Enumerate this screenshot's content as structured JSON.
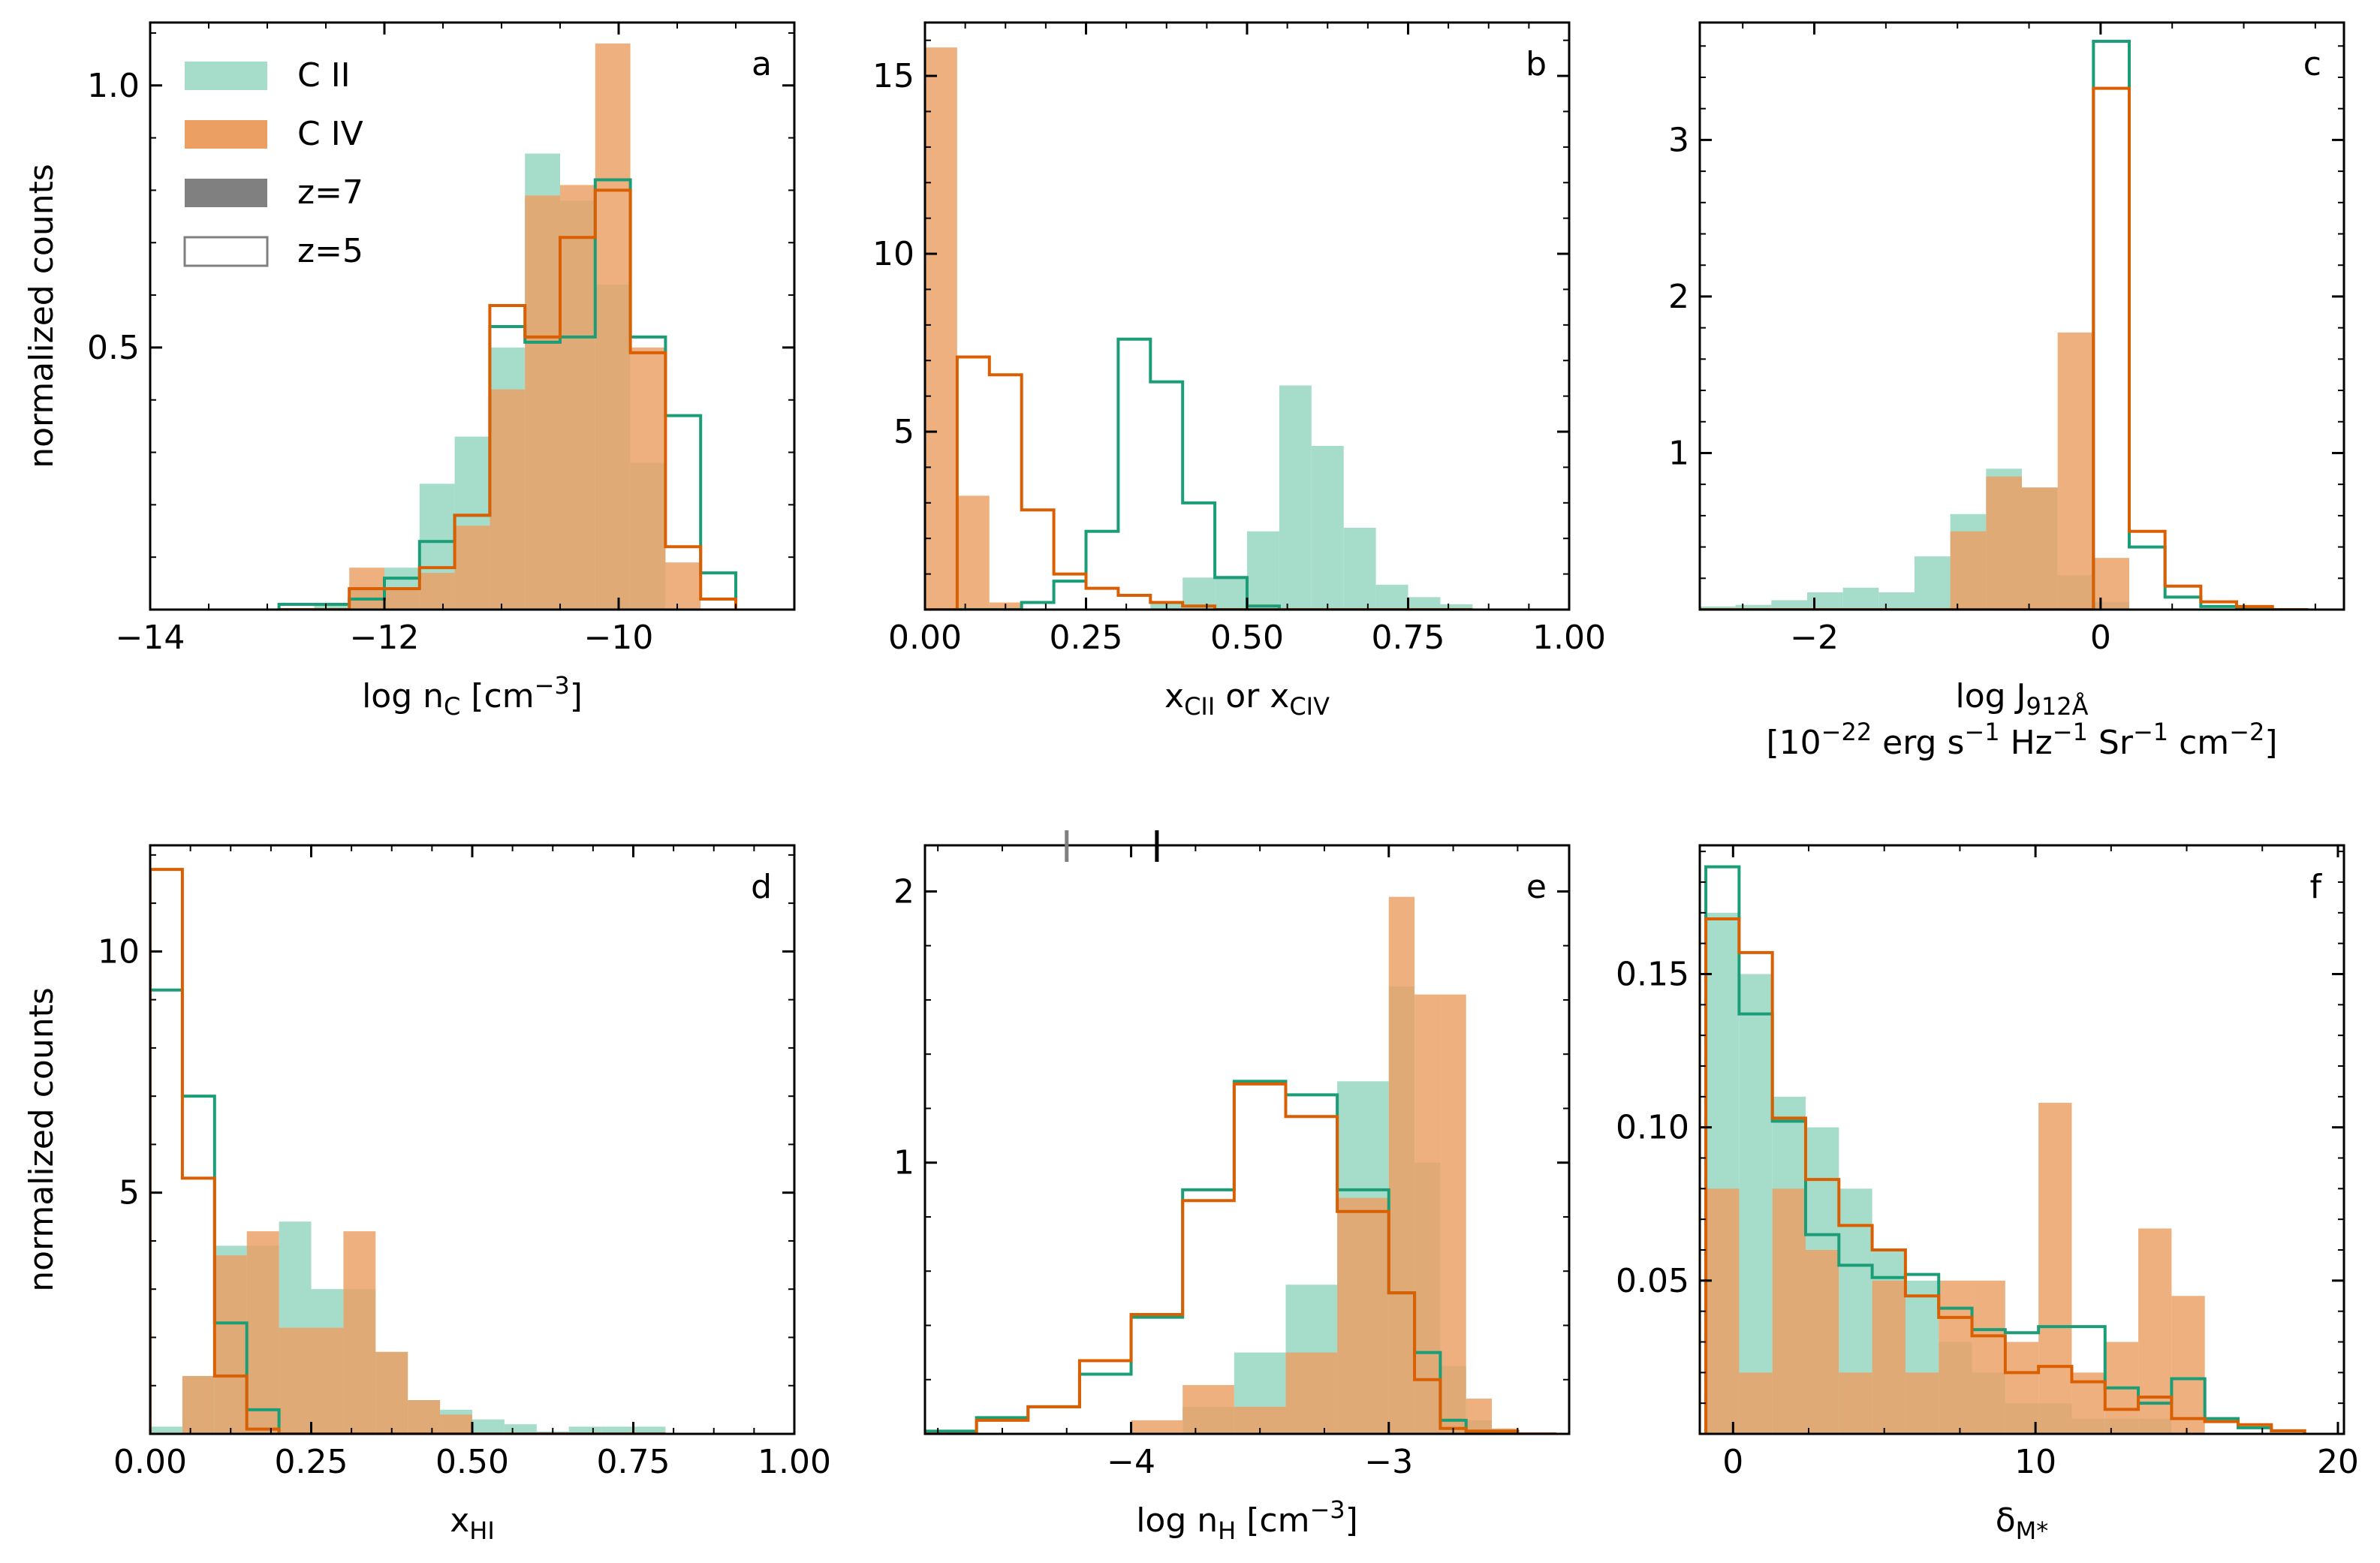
{
  "colors": {
    "cii": "#1b9e77",
    "civ": "#d95f02",
    "cii_fill": "#a6dcca",
    "civ_fill": "#eb9f63"
  },
  "legend": {
    "entries": [
      {
        "label": "C II",
        "style": "cii"
      },
      {
        "label": "C IV",
        "style": "civ"
      },
      {
        "label": "z=7",
        "style": "filled"
      },
      {
        "label": "z=5",
        "style": "open"
      }
    ]
  },
  "chart_data": [
    {
      "type": "histogram",
      "panel": "a",
      "ylabel": "normalized counts",
      "xlabel": "log n<sub>C</sub> [cm<sup>−3</sup>]",
      "xlim": [
        -14,
        -8.5
      ],
      "ylim": [
        0,
        1.12
      ],
      "xticks": [
        -14,
        -12,
        -10
      ],
      "xtick_labels": [
        "−14",
        "−12",
        "−10"
      ],
      "yticks": [
        0.5,
        1.0
      ],
      "ytick_labels": [
        "0.5",
        "1.0"
      ],
      "bin_edges": [
        -12.9,
        -12.6,
        -12.3,
        -12.0,
        -11.7,
        -11.4,
        -11.1,
        -10.8,
        -10.5,
        -10.2,
        -9.9,
        -9.6,
        -9.3,
        -9.0
      ],
      "series": [
        {
          "name": "C II z=7",
          "style": "filled",
          "color": "cii",
          "values": [
            0,
            0.01,
            0.04,
            0.08,
            0.24,
            0.33,
            0.5,
            0.87,
            0.78,
            0.62,
            0.28,
            0,
            0,
            0
          ]
        },
        {
          "name": "C IV z=7",
          "style": "filled",
          "color": "civ",
          "values": [
            0,
            0,
            0.08,
            0.04,
            0.07,
            0.16,
            0.42,
            0.79,
            0.81,
            1.08,
            0.5,
            0.09,
            0
          ]
        },
        {
          "name": "C II z=5",
          "style": "open",
          "color": "cii",
          "values": [
            0.01,
            0.01,
            0.02,
            0.06,
            0.13,
            0.18,
            0.54,
            0.51,
            0.52,
            0.82,
            0.52,
            0.37,
            0.07,
            0
          ]
        },
        {
          "name": "C IV z=5",
          "style": "open",
          "color": "civ",
          "values": [
            0,
            0,
            0.04,
            0.04,
            0.08,
            0.18,
            0.58,
            0.52,
            0.71,
            0.8,
            0.49,
            0.12,
            0.02,
            0
          ]
        }
      ]
    },
    {
      "type": "histogram",
      "panel": "b",
      "xlabel": "x<sub>CII</sub> or x<sub>CIV</sub>",
      "xlim": [
        0,
        1.0
      ],
      "ylim": [
        0,
        16.5
      ],
      "xticks": [
        0,
        0.25,
        0.5,
        0.75,
        1.0
      ],
      "xtick_labels": [
        "0.00",
        "0.25",
        "0.50",
        "0.75",
        "1.00"
      ],
      "yticks": [
        5,
        10,
        15
      ],
      "ytick_labels": [
        "5",
        "10",
        "15"
      ],
      "bin_edges": [
        0,
        0.05,
        0.1,
        0.15,
        0.2,
        0.25,
        0.3,
        0.35,
        0.4,
        0.45,
        0.5,
        0.55,
        0.6,
        0.65,
        0.7,
        0.75,
        0.8,
        0.85
      ],
      "series": [
        {
          "name": "C II z=7",
          "style": "filled",
          "color": "cii",
          "values": [
            0,
            0,
            0,
            0,
            0,
            0,
            0,
            0.2,
            0.9,
            0.95,
            2.2,
            6.3,
            4.6,
            2.3,
            0.7,
            0.35,
            0.15
          ]
        },
        {
          "name": "C IV z=7",
          "style": "filled",
          "color": "civ",
          "values": [
            15.8,
            3.2,
            0.2,
            0,
            0,
            0,
            0,
            0,
            0,
            0,
            0,
            0,
            0,
            0,
            0,
            0,
            0
          ]
        },
        {
          "name": "C II z=5",
          "style": "open",
          "color": "cii",
          "values": [
            0,
            0,
            0,
            0.2,
            0.8,
            2.2,
            7.6,
            6.4,
            3.0,
            0.9,
            0.1,
            0,
            0,
            0,
            0,
            0,
            0
          ]
        },
        {
          "name": "C IV z=5",
          "style": "open",
          "color": "civ",
          "values": [
            0,
            7.1,
            6.6,
            2.8,
            1.0,
            0.6,
            0.4,
            0.2,
            0.1,
            0,
            0,
            0,
            0,
            0,
            0,
            0,
            0
          ]
        }
      ]
    },
    {
      "type": "histogram",
      "panel": "c",
      "xlabel": "log J<sub>912Å</sub>",
      "xlabel2": "[10<sup>−22</sup> erg s<sup>−1</sup> Hz<sup>−1</sup> Sr<sup>−1</sup> cm<sup>−2</sup>]",
      "xlim": [
        -2.8,
        1.7
      ],
      "ylim": [
        0,
        3.75
      ],
      "xticks": [
        -2,
        0
      ],
      "xtick_labels": [
        "−2",
        "0"
      ],
      "yticks": [
        1,
        2,
        3
      ],
      "ytick_labels": [
        "1",
        "2",
        "3"
      ],
      "bin_edges": [
        -2.8,
        -2.55,
        -2.3,
        -2.05,
        -1.8,
        -1.55,
        -1.3,
        -1.05,
        -0.8,
        -0.55,
        -0.3,
        -0.05,
        0.2,
        0.45,
        0.7,
        0.95,
        1.2,
        1.45
      ],
      "series": [
        {
          "name": "C II z=7",
          "style": "filled",
          "color": "cii",
          "values": [
            0.02,
            0.03,
            0.06,
            0.11,
            0.14,
            0.11,
            0.34,
            0.61,
            0.9,
            0.78,
            0.22,
            0.05,
            0,
            0,
            0,
            0,
            0
          ]
        },
        {
          "name": "C IV z=7",
          "style": "filled",
          "color": "civ",
          "values": [
            0,
            0,
            0,
            0,
            0,
            0,
            0,
            0.5,
            0.85,
            0.78,
            1.77,
            0.33,
            0,
            0,
            0,
            0,
            0
          ]
        },
        {
          "name": "C II z=5",
          "style": "open",
          "color": "cii",
          "values": [
            0,
            0,
            0,
            0,
            0,
            0,
            0,
            0,
            0,
            0,
            0,
            3.63,
            0.4,
            0.08,
            0.02,
            0.01,
            0
          ]
        },
        {
          "name": "C IV z=5",
          "style": "open",
          "color": "civ",
          "values": [
            0,
            0,
            0,
            0,
            0,
            0,
            0,
            0,
            0,
            0,
            0,
            3.33,
            0.5,
            0.15,
            0.05,
            0.02,
            0
          ]
        }
      ]
    },
    {
      "type": "histogram",
      "panel": "d",
      "ylabel": "normalized counts",
      "xlabel": "x<sub>HI</sub>",
      "xlim": [
        0,
        1.0
      ],
      "ylim": [
        0,
        12.2
      ],
      "xticks": [
        0,
        0.25,
        0.5,
        0.75,
        1.0
      ],
      "xtick_labels": [
        "0.00",
        "0.25",
        "0.50",
        "0.75",
        "1.00"
      ],
      "yticks": [
        5,
        10
      ],
      "ytick_labels": [
        "5",
        "10"
      ],
      "bin_edges": [
        0,
        0.05,
        0.1,
        0.15,
        0.2,
        0.25,
        0.3,
        0.35,
        0.4,
        0.45,
        0.5,
        0.55,
        0.6,
        0.65,
        0.7,
        0.75,
        0.8
      ],
      "series": [
        {
          "name": "C II z=7",
          "style": "filled",
          "color": "cii",
          "values": [
            0.15,
            1.2,
            3.9,
            3.9,
            4.4,
            3.0,
            3.0,
            1.7,
            0.7,
            0.5,
            0.3,
            0.2,
            0.05,
            0.15,
            0.15,
            0.15
          ]
        },
        {
          "name": "C IV z=7",
          "style": "filled",
          "color": "civ",
          "values": [
            0,
            1.2,
            3.7,
            4.2,
            2.2,
            2.2,
            4.2,
            1.7,
            0.7,
            0.4,
            0,
            0,
            0,
            0,
            0,
            0
          ]
        },
        {
          "name": "C II z=5",
          "style": "open",
          "color": "cii",
          "values": [
            9.2,
            7.0,
            2.3,
            0.5,
            0,
            0,
            0,
            0,
            0,
            0,
            0,
            0,
            0,
            0,
            0,
            0
          ]
        },
        {
          "name": "C IV z=5",
          "style": "open",
          "color": "civ",
          "values": [
            11.7,
            5.3,
            1.2,
            0.1,
            0,
            0,
            0,
            0,
            0,
            0,
            0,
            0,
            0,
            0,
            0,
            0
          ]
        }
      ]
    },
    {
      "type": "histogram",
      "panel": "e",
      "xlabel": "log n<sub>H</sub> [cm<sup>−3</sup>]",
      "xlim": [
        -4.8,
        -2.3
      ],
      "ylim": [
        0,
        2.17
      ],
      "xticks": [
        -4,
        -3
      ],
      "xtick_labels": [
        "−4",
        "−3"
      ],
      "yticks": [
        1,
        2
      ],
      "ytick_labels": [
        "1",
        "2"
      ],
      "bin_edges": [
        -4.8,
        -4.6,
        -4.4,
        -4.2,
        -4.0,
        -3.8,
        -3.6,
        -3.4,
        -3.2,
        -3.0,
        -2.9,
        -2.8,
        -2.7,
        -2.6,
        -2.5,
        -2.4,
        -2.35
      ],
      "series": [
        {
          "name": "C II z=7",
          "style": "filled",
          "color": "cii",
          "values": [
            0,
            0,
            0,
            0,
            0,
            0.1,
            0.3,
            0.55,
            1.3,
            1.65,
            1.0,
            0.25,
            0.05,
            0,
            0,
            0
          ]
        },
        {
          "name": "C IV z=7",
          "style": "filled",
          "color": "civ",
          "values": [
            0,
            0,
            0,
            0,
            0.05,
            0.18,
            0.1,
            0.3,
            0.87,
            1.98,
            1.62,
            1.62,
            0.13,
            0.02,
            0,
            0
          ]
        },
        {
          "name": "C II z=5",
          "style": "open",
          "color": "cii",
          "values": [
            0.01,
            0.06,
            0.1,
            0.22,
            0.43,
            0.9,
            1.3,
            1.25,
            0.9,
            0.52,
            0.3,
            0.05,
            0.01,
            0.01,
            0,
            0
          ]
        },
        {
          "name": "C IV z=5",
          "style": "open",
          "color": "civ",
          "values": [
            0,
            0.05,
            0.1,
            0.27,
            0.44,
            0.86,
            1.29,
            1.17,
            0.82,
            0.52,
            0.2,
            0.02,
            0.01,
            0.01,
            0,
            0
          ]
        }
      ],
      "markers": [
        {
          "x": -4.25,
          "color": "#808080"
        },
        {
          "x": -3.9,
          "color": "#000000"
        }
      ]
    },
    {
      "type": "histogram",
      "panel": "f",
      "xlabel": "δ<sub>M*</sub>",
      "xlim": [
        -1.1,
        20.2
      ],
      "ylim": [
        0,
        0.192
      ],
      "xticks": [
        0,
        10,
        20
      ],
      "xtick_labels": [
        "0",
        "10",
        "20"
      ],
      "yticks": [
        0.05,
        0.1,
        0.15
      ],
      "ytick_labels": [
        "0.05",
        "0.10",
        "0.15"
      ],
      "bin_edges": [
        -0.9,
        0.2,
        1.3,
        2.4,
        3.5,
        4.6,
        5.7,
        6.8,
        7.9,
        9.0,
        10.1,
        11.2,
        12.3,
        13.4,
        14.5,
        15.6,
        16.7,
        17.8,
        18.9
      ],
      "series": [
        {
          "name": "C II z=7",
          "style": "filled",
          "color": "cii",
          "values": [
            0.17,
            0.15,
            0.11,
            0.1,
            0.08,
            0.06,
            0.05,
            0.03,
            0.02,
            0.01,
            0.01,
            0.005,
            0.005,
            0.005,
            0,
            0,
            0,
            0
          ]
        },
        {
          "name": "C IV z=7",
          "style": "filled",
          "color": "civ",
          "values": [
            0.08,
            0.02,
            0.08,
            0.06,
            0.02,
            0.05,
            0.02,
            0.05,
            0.05,
            0.03,
            0.108,
            0.02,
            0.03,
            0.067,
            0.045,
            0,
            0,
            0
          ]
        },
        {
          "name": "C II z=5",
          "style": "open",
          "color": "cii",
          "values": [
            0.185,
            0.137,
            0.102,
            0.065,
            0.055,
            0.051,
            0.052,
            0.041,
            0.034,
            0.033,
            0.035,
            0.035,
            0.015,
            0.01,
            0.018,
            0.005,
            0.002,
            0.001
          ]
        },
        {
          "name": "C IV z=5",
          "style": "open",
          "color": "civ",
          "values": [
            0.168,
            0.157,
            0.103,
            0.083,
            0.068,
            0.06,
            0.045,
            0.038,
            0.032,
            0.02,
            0.022,
            0.017,
            0.008,
            0.012,
            0.005,
            0.004,
            0.003,
            0.001
          ]
        }
      ]
    }
  ]
}
